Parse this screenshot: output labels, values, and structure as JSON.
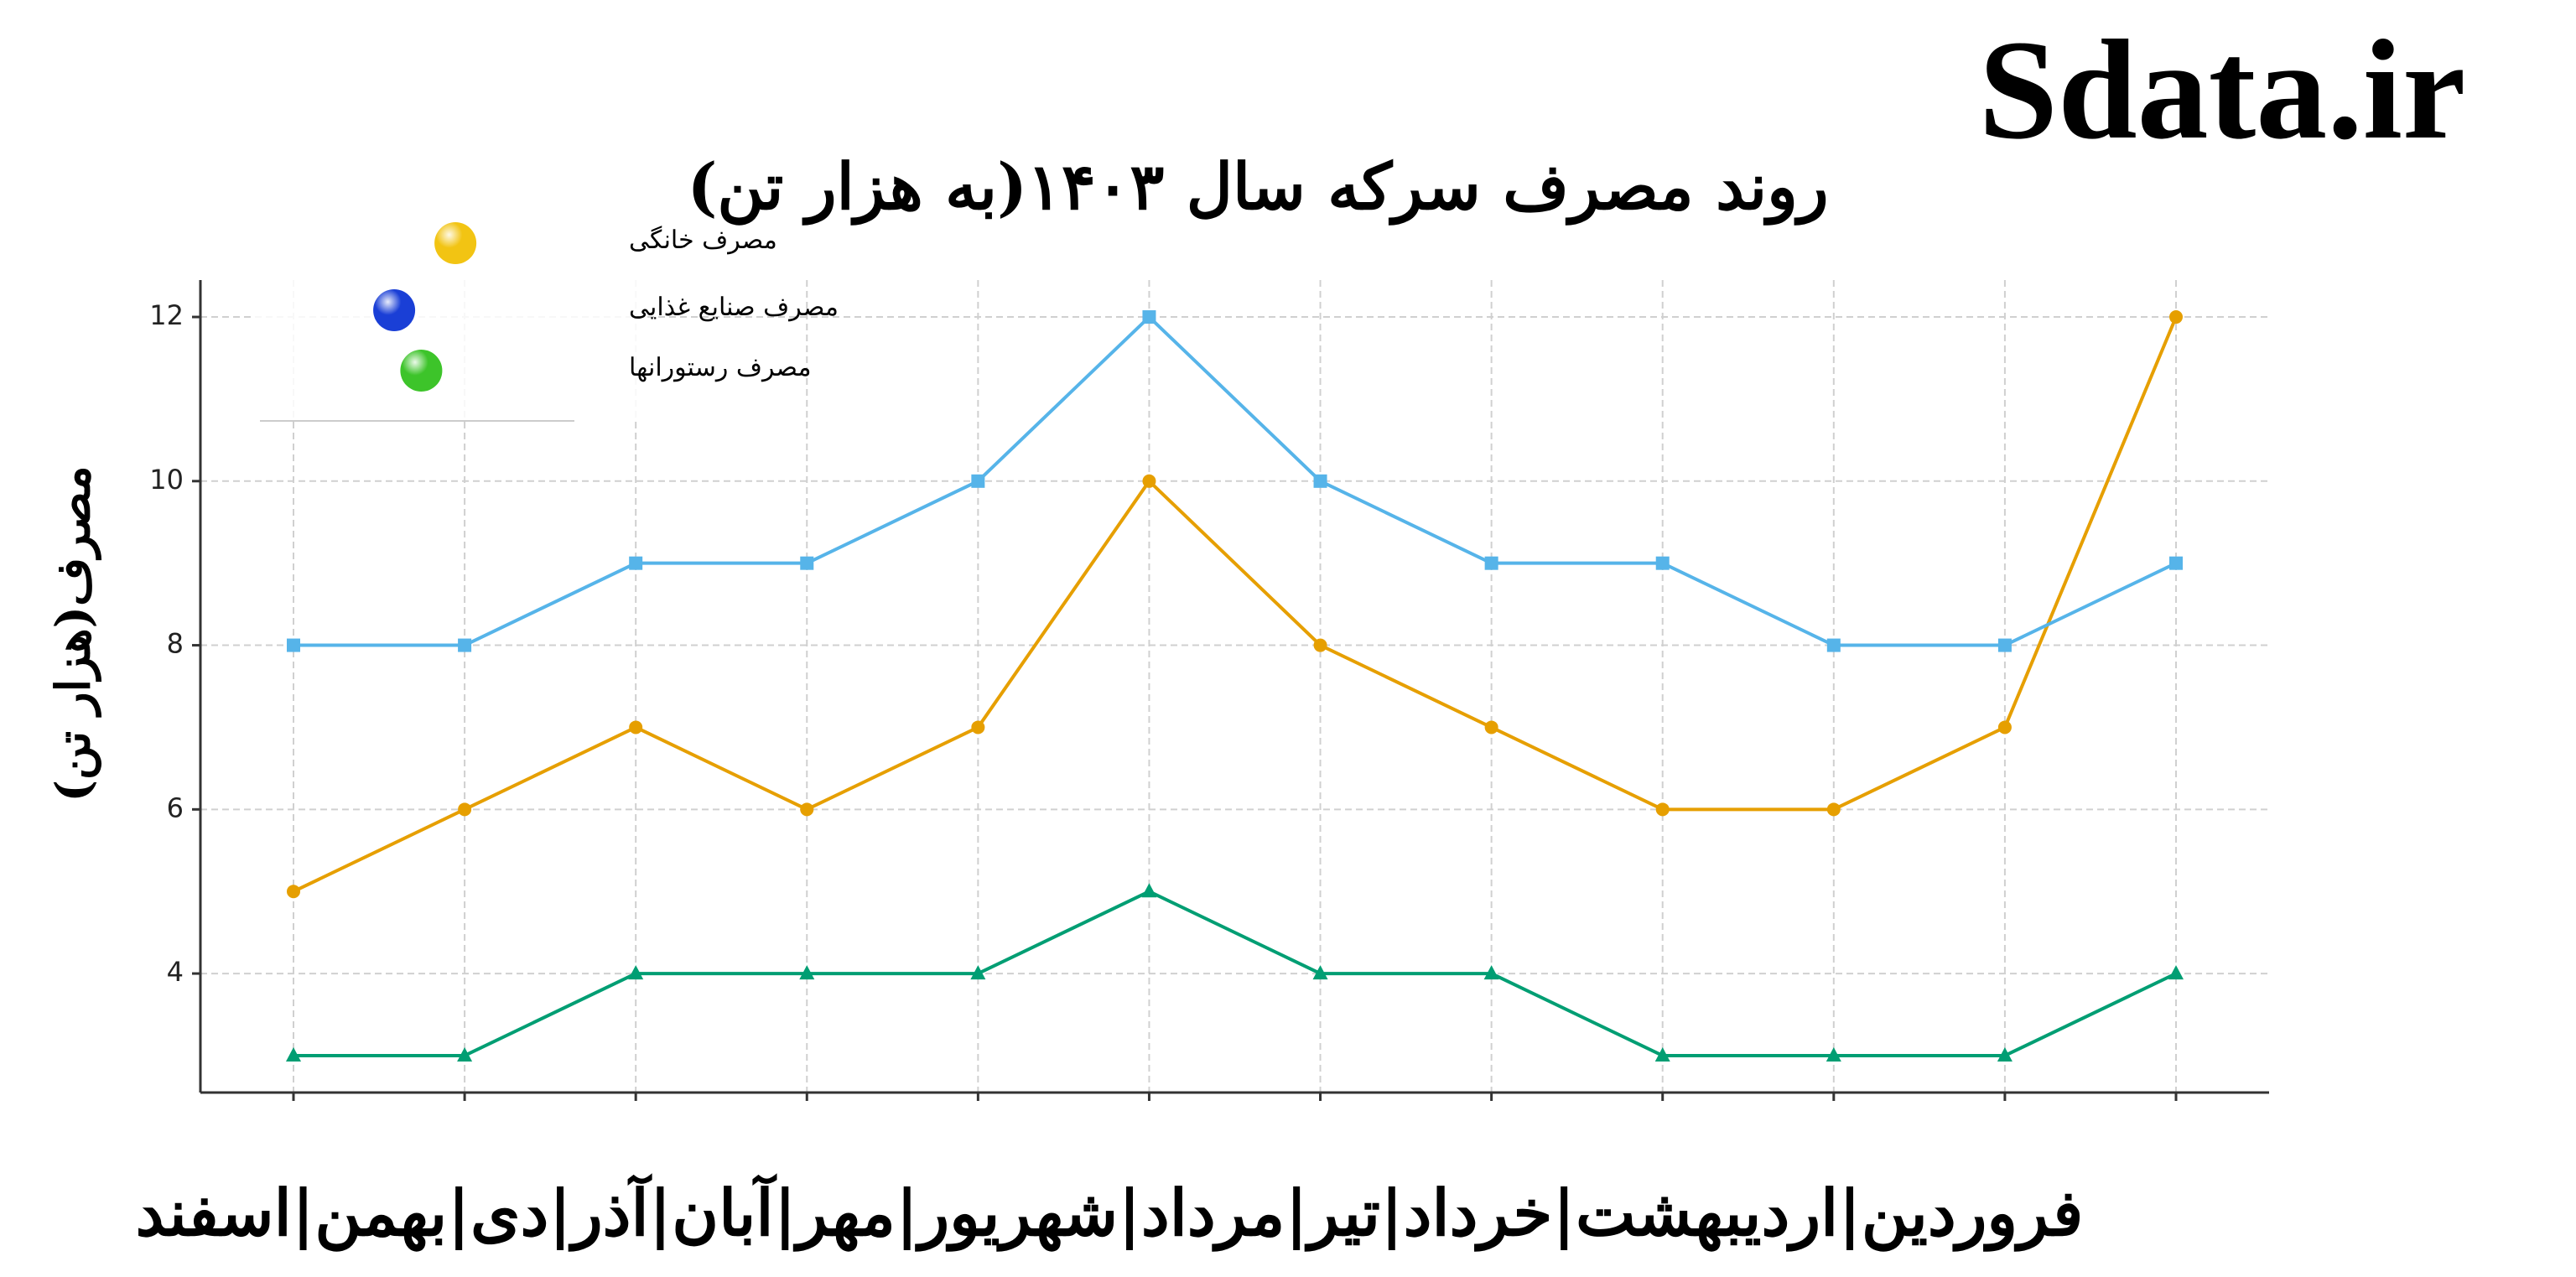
{
  "chart_data": {
    "type": "line",
    "title": "روند مصرف سرکه سال ۱۴۰۳(به هزار تن)",
    "watermark": "Sdata.ir",
    "y_label": "مصرف(هزار تن)",
    "x_annotation": "فروردین|اردیبهشت|خرداد|تیر|مرداد|شهریور|مهر|آبان|آذر|دی|بهمن|اسفند",
    "categories": [
      null,
      null,
      null,
      null,
      null,
      null,
      null,
      null,
      null,
      null,
      null,
      null
    ],
    "series": [
      {
        "name": "مصرف خانگی",
        "color": "#e69f00",
        "legend_color": "#f2c413",
        "marker": "circle",
        "values": [
          5,
          6,
          7,
          6,
          7,
          10,
          8,
          7,
          6,
          6,
          7,
          12
        ]
      },
      {
        "name": "مصرف صنایع غذایی",
        "color": "#56b4e9",
        "legend_color": "#1a3fd6",
        "marker": "square",
        "values": [
          8,
          8,
          9,
          9,
          10,
          12,
          10,
          9,
          9,
          8,
          8,
          9
        ]
      },
      {
        "name": "مصرف رستورانها",
        "color": "#009e73",
        "legend_color": "#3dc42a",
        "marker": "triangle",
        "values": [
          3,
          3,
          4,
          4,
          4,
          5,
          4,
          4,
          3,
          3,
          3,
          4
        ]
      }
    ],
    "ylim": [
      2.55,
      12.45
    ],
    "yticks": [
      4,
      6,
      8,
      10,
      12
    ],
    "grid": true
  }
}
